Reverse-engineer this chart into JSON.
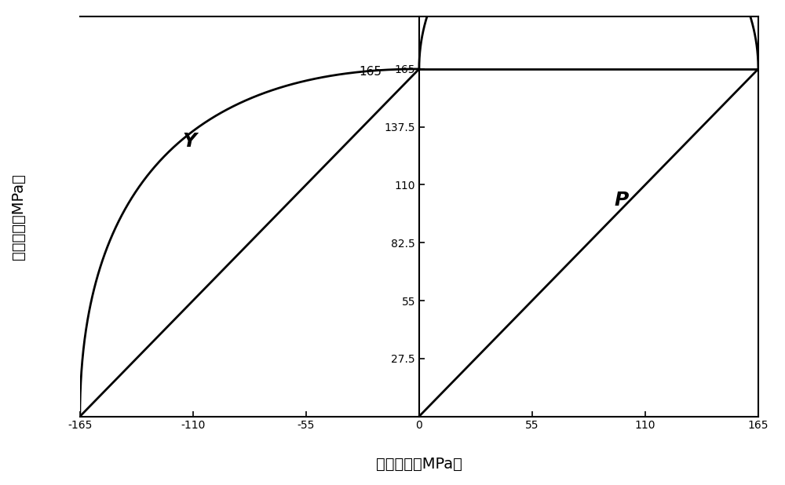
{
  "title": "",
  "xlabel": "轴向应力（MPa）",
  "ylabel": "切向应力（MPa）",
  "xlim": [
    -165,
    165
  ],
  "ylim": [
    0,
    190
  ],
  "xticks": [
    -165,
    -110,
    -55,
    0,
    55,
    110,
    165
  ],
  "yticks": [
    27.5,
    55,
    82.5,
    110,
    137.5,
    165
  ],
  "xlabel_italic": "MPa",
  "ylabel_italic": "MPa",
  "background_color": "#ffffff",
  "line_color": "#000000",
  "label_Y": "Y",
  "label_P": "P",
  "label_165": "165",
  "label_1375": "137.5"
}
